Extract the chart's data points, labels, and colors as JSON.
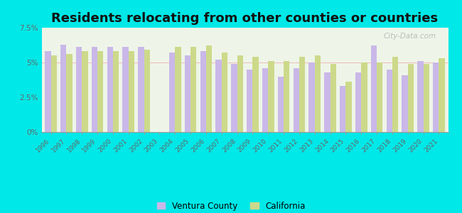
{
  "title": "Residents relocating from other counties or countries",
  "years": [
    1996,
    1997,
    1998,
    1999,
    2000,
    2001,
    2002,
    2003,
    2004,
    2005,
    2006,
    2007,
    2008,
    2009,
    2010,
    2011,
    2012,
    2013,
    2014,
    2015,
    2016,
    2017,
    2018,
    2019,
    2020,
    2021
  ],
  "ventura": [
    5.8,
    6.3,
    6.1,
    6.1,
    6.1,
    6.1,
    6.1,
    null,
    5.7,
    5.5,
    5.8,
    5.2,
    4.9,
    4.5,
    4.6,
    4.0,
    4.6,
    5.0,
    4.3,
    3.3,
    4.3,
    6.2,
    4.5,
    4.1,
    5.1,
    5.0
  ],
  "california": [
    5.5,
    5.6,
    5.8,
    5.8,
    5.8,
    5.8,
    5.9,
    null,
    6.1,
    6.1,
    6.2,
    5.7,
    5.5,
    5.4,
    5.1,
    5.1,
    5.4,
    5.5,
    4.9,
    3.6,
    5.0,
    5.0,
    5.4,
    4.9,
    4.9,
    5.3
  ],
  "ventura_color": "#c9b8e8",
  "california_color": "#cdd98a",
  "background_color": "#eef5e8",
  "outer_background": "#00e8e8",
  "ylim": [
    0,
    7.5
  ],
  "yticks": [
    0,
    2.5,
    5.0,
    7.5
  ],
  "ytick_labels": [
    "0%",
    "2.5%",
    "5%",
    "7.5%"
  ],
  "title_fontsize": 13,
  "legend_labels": [
    "Ventura County",
    "California"
  ],
  "bar_width": 0.38
}
